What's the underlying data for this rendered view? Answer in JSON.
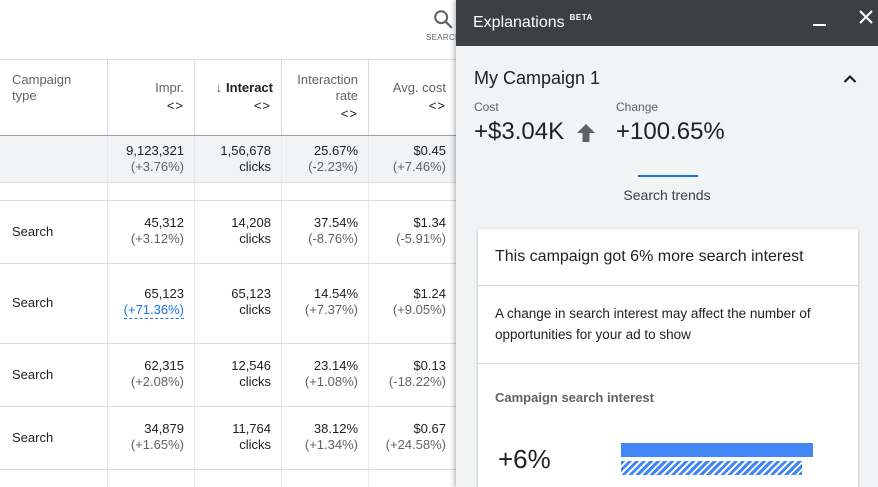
{
  "toolbar": {
    "search_label": "SEARCH"
  },
  "table": {
    "headers": {
      "type": [
        "Campaign",
        "type"
      ],
      "impr": "Impr.",
      "interactions": "Interact",
      "rate": [
        "Interaction",
        "rate"
      ],
      "cost": "Avg. cost",
      "sort_icon": "<>",
      "sort_arrow": "↓"
    },
    "total": {
      "impr": {
        "value": "9,123,321",
        "change": "(+3.76%)"
      },
      "interactions": {
        "value": "1,56,678",
        "unit": "clicks"
      },
      "rate": {
        "value": "25.67%",
        "change": "(-2.23%)"
      },
      "cost": {
        "value": "$0.45",
        "change": "(+7.46%)"
      }
    },
    "rows": [
      {
        "type": "Search",
        "impr": "45,312",
        "impr_change": "(+3.12%)",
        "inter": "14,208",
        "inter_unit": "clicks",
        "rate": "37.54%",
        "rate_change": "(-8.76%)",
        "cost": "$1.34",
        "cost_change": "(-5.91%)"
      },
      {
        "type": "Search",
        "impr": "65,123",
        "impr_change": "(+71.36%)",
        "inter": "65,123",
        "inter_unit": "clicks",
        "rate": "14.54%",
        "rate_change": "(+7.37%)",
        "cost": "$1.24",
        "cost_change": "(+9.05%)"
      },
      {
        "type": "Search",
        "impr": "62,315",
        "impr_change": "(+2.08%)",
        "inter": "12,546",
        "inter_unit": "clicks",
        "rate": "23.14%",
        "rate_change": "(+1.08%)",
        "cost": "$0.13",
        "cost_change": "(-18.22%)"
      },
      {
        "type": "Search",
        "impr": "34,879",
        "impr_change": "(+1.65%)",
        "inter": "11,764",
        "inter_unit": "clicks",
        "rate": "38.12%",
        "rate_change": "(+1.34%)",
        "cost": "$0.67",
        "cost_change": "(+24.58%)"
      }
    ]
  },
  "panel": {
    "title": "Explanations",
    "badge": "BETA",
    "campaign": "My Campaign 1",
    "cost_label": "Cost",
    "cost_value": "+$3.04K",
    "change_label": "Change",
    "change_value": "+100.65%",
    "tab": "Search trends",
    "card": {
      "title": "This campaign got 6% more search interest",
      "desc": "A change in search interest may affect the number of opportunities for your ad to show",
      "subtitle": "Campaign search interest",
      "big_value": "+6%"
    }
  },
  "colors": {
    "accent": "#1a73e8",
    "bar": "#4285f4",
    "panel_header": "#3c4043"
  }
}
